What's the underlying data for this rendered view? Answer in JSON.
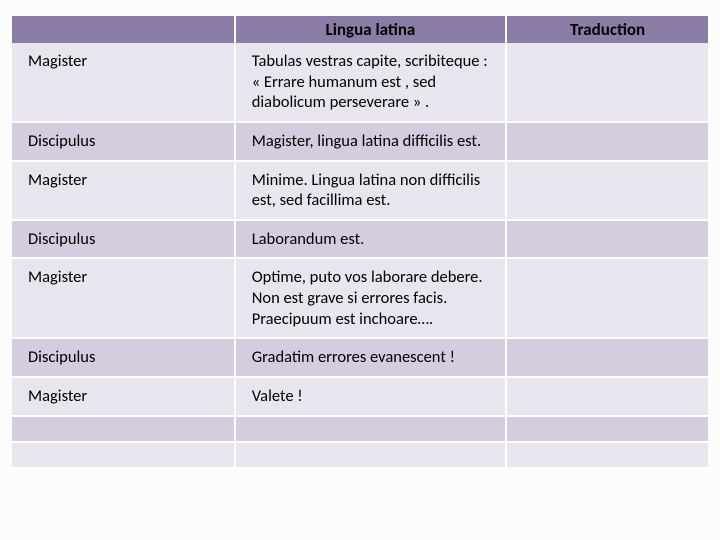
{
  "table": {
    "header_bg": "#8b7ca6",
    "odd_row_bg": "#e8e5ee",
    "even_row_bg": "#d3cddf",
    "text_color": "#000000",
    "font_family": "Calibri",
    "columns": [
      {
        "label": "",
        "width_pct": 32
      },
      {
        "label": "Lingua latina",
        "width_pct": 39
      },
      {
        "label": "Traduction",
        "width_pct": 29
      }
    ],
    "rows": [
      {
        "speaker": "Magister",
        "latin": "Tabulas vestras capite, scribiteque : « Errare humanum est , sed diabolicum perseverare » .",
        "translation": ""
      },
      {
        "speaker": "Discipulus",
        "latin": "Magister, lingua latina difficilis est.",
        "translation": ""
      },
      {
        "speaker": "Magister",
        "latin": "Minime. Lingua latina non difficilis est, sed facillima est.",
        "translation": ""
      },
      {
        "speaker": "Discipulus",
        "latin": "Laborandum est.",
        "translation": ""
      },
      {
        "speaker": "Magister",
        "latin": "Optime, puto vos laborare debere. Non est grave si errores facis. Praecipuum est inchoare….",
        "translation": ""
      },
      {
        "speaker": "Discipulus",
        "latin": "Gradatim errores evanescent !",
        "translation": ""
      },
      {
        "speaker": "Magister",
        "latin": "Valete !",
        "translation": ""
      },
      {
        "speaker": "",
        "latin": "",
        "translation": ""
      },
      {
        "speaker": "",
        "latin": "",
        "translation": ""
      }
    ]
  }
}
